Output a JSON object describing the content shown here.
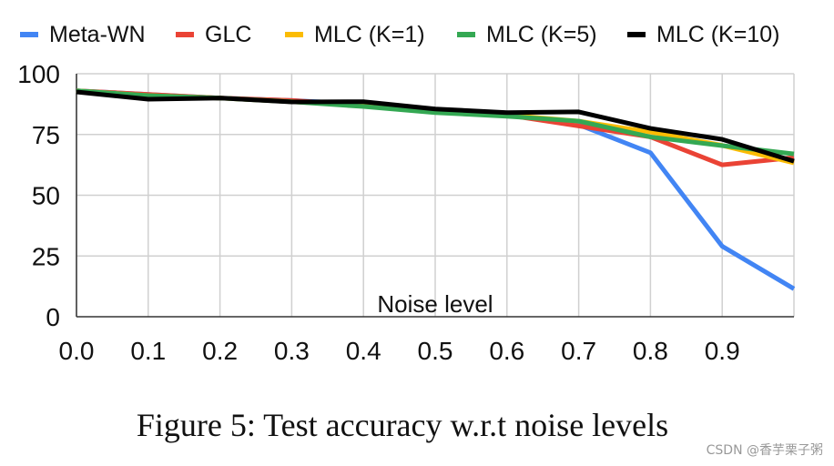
{
  "chart_data": {
    "type": "line",
    "title": "",
    "xlabel": "Noise level",
    "ylabel": "",
    "x": [
      0.0,
      0.1,
      0.2,
      0.3,
      0.4,
      0.5,
      0.6,
      0.7,
      0.8,
      0.9,
      1.0
    ],
    "x_tick_labels": [
      "0.0",
      "0.1",
      "0.2",
      "0.3",
      "0.4",
      "0.5",
      "0.6",
      "0.7",
      "0.8",
      "0.9"
    ],
    "y_tick_labels": [
      "0",
      "25",
      "50",
      "75",
      "100"
    ],
    "ylim": [
      0,
      100
    ],
    "xlim": [
      0.0,
      1.0
    ],
    "grid": true,
    "legend_position": "top",
    "series": [
      {
        "name": "Meta-WN",
        "color": "#4285F4",
        "values": [
          93,
          91.5,
          90,
          89,
          87.5,
          85,
          83,
          79,
          67.5,
          29,
          11.5
        ]
      },
      {
        "name": "GLC",
        "color": "#EA4335",
        "values": [
          93,
          91.5,
          90,
          89,
          87,
          85,
          83,
          78.5,
          74,
          62.5,
          65.5
        ]
      },
      {
        "name": "MLC (K=1)",
        "color": "#FBBC04",
        "values": [
          93,
          91,
          90,
          88.5,
          87,
          84.5,
          83,
          80.5,
          76,
          70.5,
          63.3
        ]
      },
      {
        "name": "MLC (K=5)",
        "color": "#34A853",
        "values": [
          93,
          91,
          90,
          88.5,
          86.5,
          84,
          82.5,
          80.5,
          74,
          70.4,
          67
        ]
      },
      {
        "name": "MLC (K=10)",
        "color": "#000000",
        "values": [
          92.5,
          89.5,
          90,
          88.4,
          88.5,
          85.5,
          84,
          84.3,
          77.5,
          73,
          64
        ]
      }
    ]
  },
  "caption": "Figure 5: Test accuracy w.r.t noise levels",
  "watermark": "CSDN @香芋栗子粥"
}
